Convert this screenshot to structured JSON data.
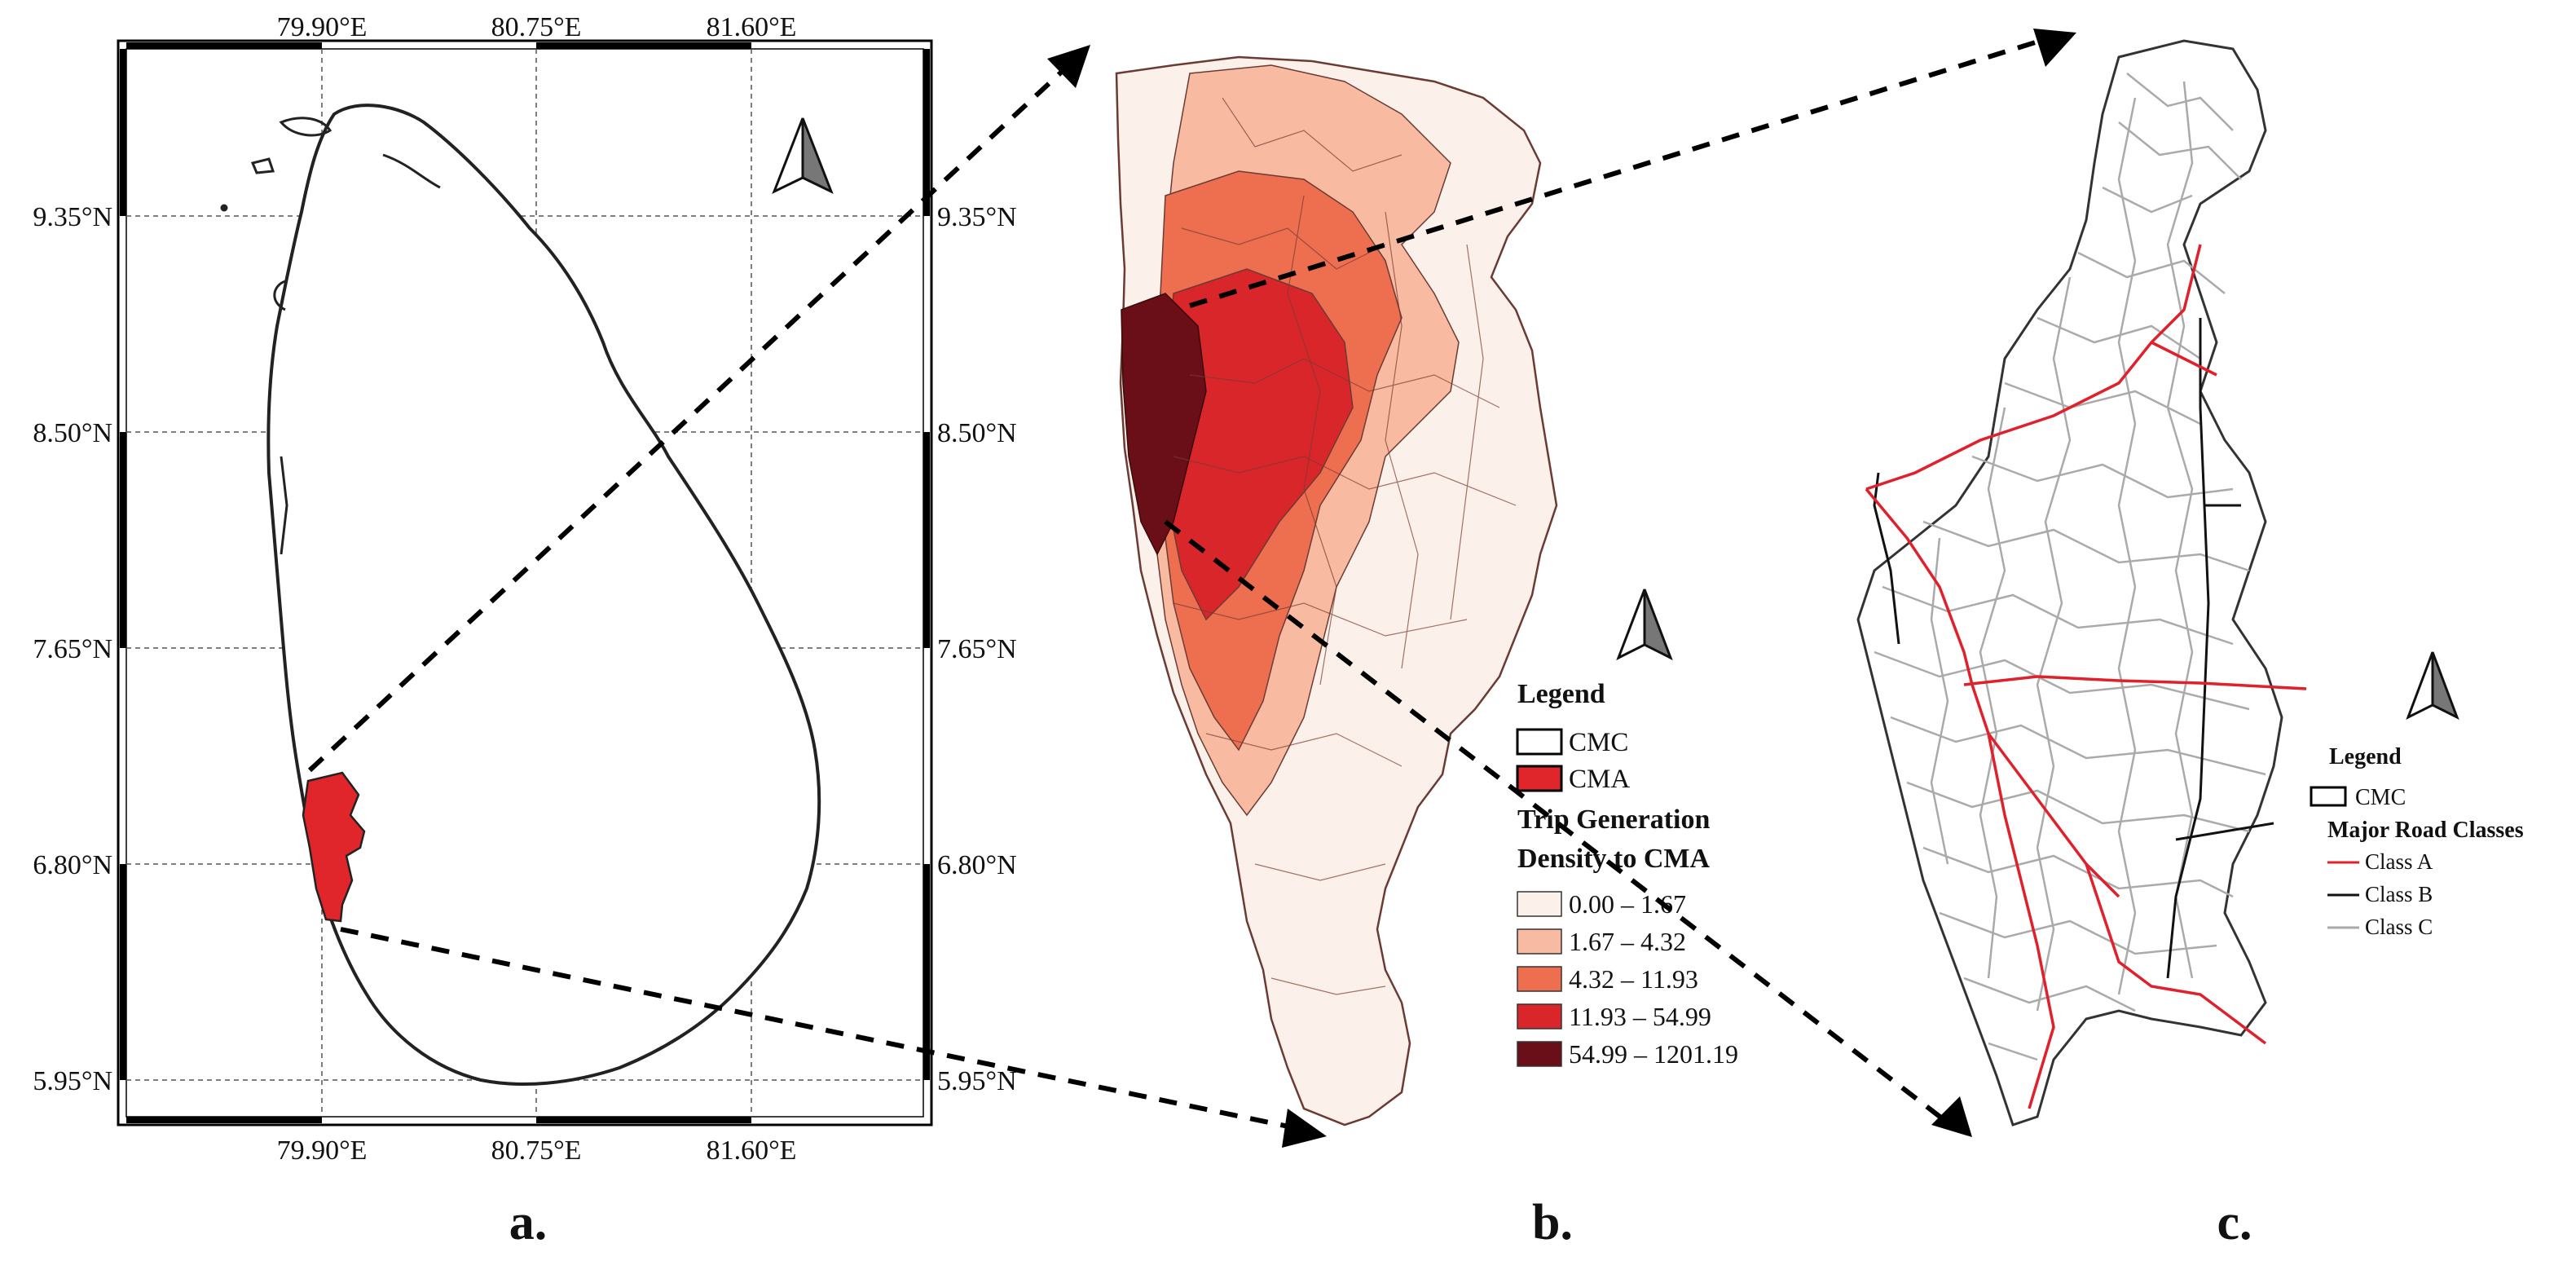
{
  "panel_a": {
    "top_ticks": [
      "79.90°E",
      "80.75°E",
      "81.60°E"
    ],
    "bottom_ticks": [
      "79.90°E",
      "80.75°E",
      "81.60°E"
    ],
    "left_ticks": [
      "9.35°N",
      "8.50°N",
      "7.65°N",
      "6.80°N",
      "5.95°N"
    ],
    "right_ticks": [
      "9.35°N",
      "8.50°N",
      "7.65°N",
      "6.80°N",
      "5.95°N"
    ],
    "caption": "a."
  },
  "panel_b": {
    "legend_title": "Legend",
    "cmc_label": "CMC",
    "cma_label": "CMA",
    "density_title_line1": "Trip Generation",
    "density_title_line2": "Density to CMA",
    "classes": [
      {
        "label": "0.00 – 1.67",
        "color": "#fcf0ea"
      },
      {
        "label": "1.67 – 4.32",
        "color": "#f8bba2"
      },
      {
        "label": "4.32 – 11.93",
        "color": "#ee6f50"
      },
      {
        "label": "11.93 – 54.99",
        "color": "#d8262b"
      },
      {
        "label": "54.99 – 1201.19",
        "color": "#6a0f17"
      }
    ],
    "caption": "b."
  },
  "panel_c": {
    "legend_title": "Legend",
    "cmc_label": "CMC",
    "roads_title": "Major Road Classes",
    "roads": [
      {
        "label": "Class A",
        "color": "#e0202a"
      },
      {
        "label": "Class B",
        "color": "#111111"
      },
      {
        "label": "Class C",
        "color": "#aaaaaa"
      }
    ],
    "caption": "c."
  },
  "colors": {
    "cma_red": "#e0262b",
    "frame": "#000000",
    "grid": "#555555"
  }
}
